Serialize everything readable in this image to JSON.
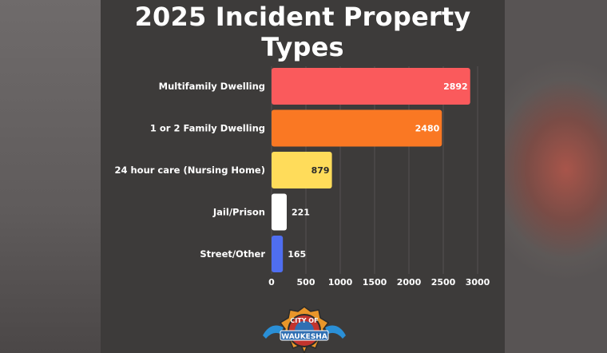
{
  "chart_data": {
    "type": "bar",
    "orientation": "horizontal",
    "title": "2025 Incident Property Types",
    "categories": [
      "Multifamily Dwelling",
      "1 or 2 Family Dwelling",
      "24 hour care (Nursing Home)",
      "Jail/Prison",
      "Street/Other"
    ],
    "values": [
      2892,
      2480,
      879,
      221,
      165
    ],
    "colors": [
      "#fa5a5c",
      "#fa7823",
      "#ffdc5a",
      "#ffffff",
      "#4f6ef0"
    ],
    "xticks": [
      0,
      500,
      1000,
      1500,
      2000,
      2500,
      3000
    ],
    "xlim": [
      0,
      3000
    ],
    "xlabel": "",
    "ylabel": "",
    "grid": true,
    "legend": "none"
  },
  "logo": {
    "text_top": "CITY OF",
    "text_main": "WAUKESHA"
  }
}
